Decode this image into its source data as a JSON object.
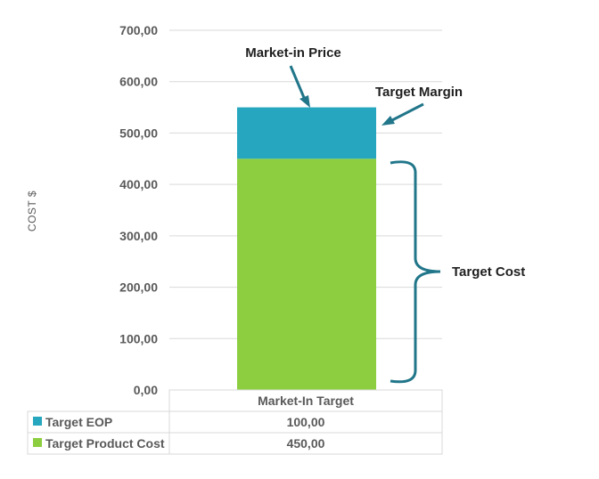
{
  "chart_data": {
    "type": "bar",
    "stacked": true,
    "categories": [
      "Market-In Target"
    ],
    "series": [
      {
        "name": "Target Product Cost",
        "values": [
          450
        ],
        "color": "#8cce3f"
      },
      {
        "name": "Target EOP",
        "values": [
          100
        ],
        "color": "#26a7bf"
      }
    ],
    "ylabel": "COST $",
    "ylim": [
      0,
      700
    ],
    "yticks": [
      0,
      100,
      200,
      300,
      400,
      500,
      600,
      700
    ],
    "ytick_labels": [
      "0,00",
      "100,00",
      "200,00",
      "300,00",
      "400,00",
      "500,00",
      "600,00",
      "700,00"
    ],
    "grid": true,
    "data_table": {
      "header": "Market-In Target",
      "rows": [
        {
          "label": "Target EOP",
          "value": "100,00",
          "color": "#26a7bf"
        },
        {
          "label": "Target Product Cost",
          "value": "450,00",
          "color": "#8cce3f"
        }
      ]
    },
    "annotations": {
      "market_in_price": "Market-in Price",
      "target_margin": "Target Margin",
      "target_cost": "Target Cost"
    },
    "annotation_color": "#21768a"
  }
}
